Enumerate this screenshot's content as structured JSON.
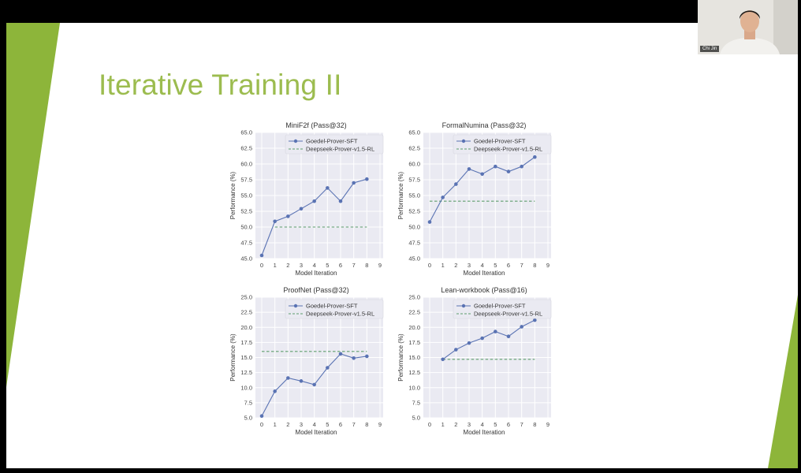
{
  "slide": {
    "title": "Iterative Training II",
    "accent_color": "#8db53a"
  },
  "webcam": {
    "name": "Chi Jin"
  },
  "chart_data": [
    {
      "type": "line",
      "title": "MiniF2f (Pass@32)",
      "xlabel": "Model Iteration",
      "ylabel": "Performance (%)",
      "xlim": [
        0,
        9
      ],
      "xticks": [
        0,
        1,
        2,
        3,
        4,
        5,
        6,
        7,
        8,
        9
      ],
      "ylim": [
        45.0,
        65.0
      ],
      "yticks": [
        45.0,
        47.5,
        50.0,
        52.5,
        55.0,
        57.5,
        60.0,
        62.5,
        65.0
      ],
      "grid": true,
      "legend_position": "top",
      "series": [
        {
          "name": "Goedel-Prover-SFT",
          "style": "line-marker",
          "color": "#5a73b3",
          "x": [
            0,
            1,
            2,
            3,
            4,
            5,
            6,
            7,
            8
          ],
          "y": [
            45.5,
            50.9,
            51.7,
            52.9,
            54.1,
            56.2,
            54.1,
            57.0,
            57.6
          ]
        },
        {
          "name": "Deepseek-Prover-v1.5-RL",
          "style": "dashed",
          "color": "#5f9e6e",
          "x": [
            1,
            8
          ],
          "y": [
            50.0,
            50.0
          ]
        }
      ]
    },
    {
      "type": "line",
      "title": "FormalNumina (Pass@32)",
      "xlabel": "Model Iteration",
      "ylabel": "Performance (%)",
      "xlim": [
        0,
        9
      ],
      "xticks": [
        0,
        1,
        2,
        3,
        4,
        5,
        6,
        7,
        8,
        9
      ],
      "ylim": [
        45.0,
        65.0
      ],
      "yticks": [
        45.0,
        47.5,
        50.0,
        52.5,
        55.0,
        57.5,
        60.0,
        62.5,
        65.0
      ],
      "grid": true,
      "legend_position": "top",
      "series": [
        {
          "name": "Goedel-Prover-SFT",
          "style": "line-marker",
          "color": "#5a73b3",
          "x": [
            0,
            1,
            2,
            3,
            4,
            5,
            6,
            7,
            8
          ],
          "y": [
            50.8,
            54.7,
            56.8,
            59.2,
            58.4,
            59.6,
            58.8,
            59.6,
            61.1
          ]
        },
        {
          "name": "Deepseek-Prover-v1.5-RL",
          "style": "dashed",
          "color": "#5f9e6e",
          "x": [
            0,
            8
          ],
          "y": [
            54.1,
            54.1
          ]
        }
      ]
    },
    {
      "type": "line",
      "title": "ProofNet (Pass@32)",
      "xlabel": "Model Iteration",
      "ylabel": "Performance (%)",
      "xlim": [
        0,
        9
      ],
      "xticks": [
        0,
        1,
        2,
        3,
        4,
        5,
        6,
        7,
        8,
        9
      ],
      "ylim": [
        5.0,
        25.0
      ],
      "yticks": [
        5.0,
        7.5,
        10.0,
        12.5,
        15.0,
        17.5,
        20.0,
        22.5,
        25.0
      ],
      "grid": true,
      "legend_position": "top",
      "series": [
        {
          "name": "Goedel-Prover-SFT",
          "style": "line-marker",
          "color": "#5a73b3",
          "x": [
            0,
            1,
            2,
            3,
            4,
            5,
            6,
            7,
            8
          ],
          "y": [
            5.3,
            9.4,
            11.6,
            11.1,
            10.5,
            13.3,
            15.6,
            14.9,
            15.2
          ]
        },
        {
          "name": "Deepseek-Prover-v1.5-RL",
          "style": "dashed",
          "color": "#5f9e6e",
          "x": [
            0,
            8
          ],
          "y": [
            16.0,
            16.0
          ]
        }
      ]
    },
    {
      "type": "line",
      "title": "Lean-workbook (Pass@16)",
      "xlabel": "Model Iteration",
      "ylabel": "Performance (%)",
      "xlim": [
        0,
        9
      ],
      "xticks": [
        0,
        1,
        2,
        3,
        4,
        5,
        6,
        7,
        8,
        9
      ],
      "ylim": [
        5.0,
        25.0
      ],
      "yticks": [
        5.0,
        7.5,
        10.0,
        12.5,
        15.0,
        17.5,
        20.0,
        22.5,
        25.0
      ],
      "grid": true,
      "legend_position": "top",
      "series": [
        {
          "name": "Goedel-Prover-SFT",
          "style": "line-marker",
          "color": "#5a73b3",
          "x": [
            1,
            2,
            3,
            4,
            5,
            6,
            7,
            8
          ],
          "y": [
            14.7,
            16.3,
            17.4,
            18.2,
            19.3,
            18.5,
            20.1,
            21.2
          ]
        },
        {
          "name": "Deepseek-Prover-v1.5-RL",
          "style": "dashed",
          "color": "#5f9e6e",
          "x": [
            1,
            8
          ],
          "y": [
            14.7,
            14.7
          ]
        }
      ]
    }
  ]
}
